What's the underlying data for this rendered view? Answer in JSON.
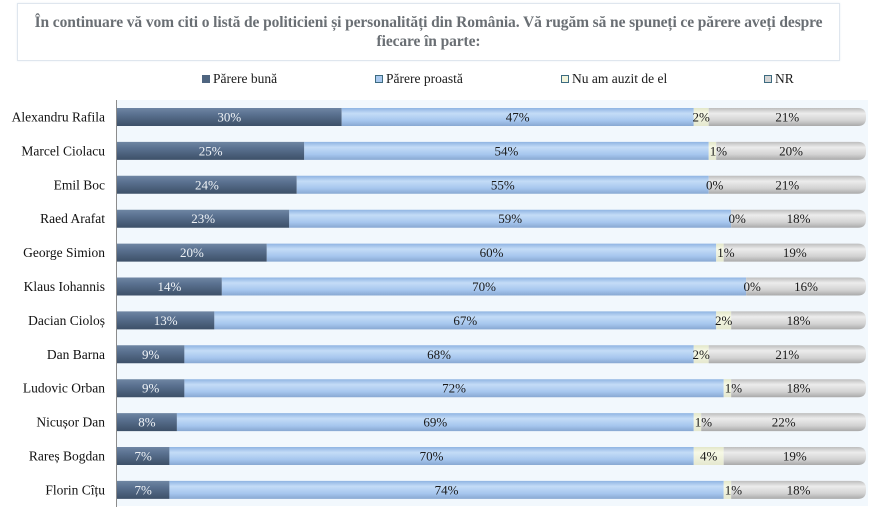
{
  "chart_data": {
    "type": "bar",
    "orientation": "horizontal",
    "stacked": true,
    "title": "În continuare vă vom citi o listă de politicieni și personalități din România. Vă rugăm să ne spuneți ce părere aveți despre fiecare în parte:",
    "xlabel": "",
    "ylabel": "",
    "xlim": [
      0,
      100
    ],
    "grid": false,
    "legend_position": "top",
    "categories": [
      "Alexandru Rafila",
      "Marcel Ciolacu",
      "Emil Boc",
      "Raed Arafat",
      "George Simion",
      "Klaus Iohannis",
      "Dacian Cioloș",
      "Dan Barna",
      "Ludovic Orban",
      "Nicușor Dan",
      "Rareș Bogdan",
      "Florin Cîțu"
    ],
    "series": [
      {
        "name": "Părere bună",
        "color": "#4f6580",
        "label_color": "#eef2f6",
        "values": [
          30,
          25,
          24,
          23,
          20,
          14,
          13,
          9,
          9,
          8,
          7,
          7
        ]
      },
      {
        "name": "Părere proastă",
        "color": "#a9c9ef",
        "label_color": "#1a1a1a",
        "values": [
          47,
          54,
          55,
          59,
          60,
          70,
          67,
          68,
          72,
          69,
          70,
          74
        ]
      },
      {
        "name": "Nu am auzit de el",
        "color": "#f1f4dc",
        "label_color": "#1a1a1a",
        "values": [
          2,
          1,
          0,
          0,
          1,
          0,
          2,
          2,
          1,
          1,
          4,
          1
        ]
      },
      {
        "name": "NR",
        "color": "#d4d4d4",
        "label_color": "#1a1a1a",
        "values": [
          21,
          20,
          21,
          18,
          19,
          16,
          18,
          21,
          18,
          22,
          19,
          18
        ]
      }
    ],
    "value_suffix": "%"
  }
}
